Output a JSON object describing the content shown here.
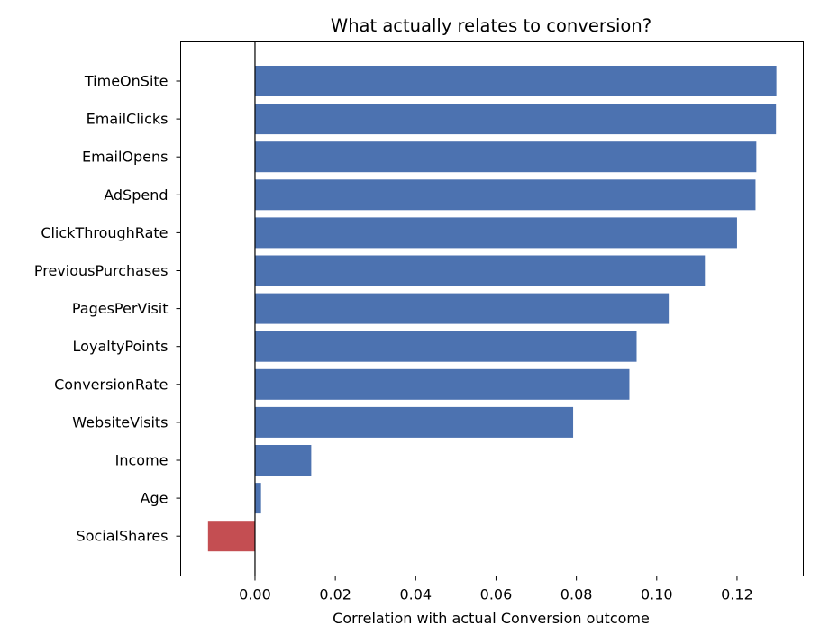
{
  "chart_data": {
    "type": "bar",
    "orientation": "horizontal",
    "title": "What actually relates to conversion?",
    "xlabel": "Correlation with actual Conversion outcome",
    "ylabel": "",
    "xlim": [
      -0.0185,
      0.1365
    ],
    "xticks": [
      "0.00",
      "0.02",
      "0.04",
      "0.06",
      "0.08",
      "0.10",
      "0.12"
    ],
    "grid": false,
    "legend": "none",
    "categories": [
      "TimeOnSite",
      "EmailClicks",
      "EmailOpens",
      "AdSpend",
      "ClickThroughRate",
      "PreviousPurchases",
      "PagesPerVisit",
      "LoyaltyPoints",
      "ConversionRate",
      "WebsiteVisits",
      "Income",
      "Age",
      "SocialShares"
    ],
    "values": [
      0.1298,
      0.1297,
      0.1248,
      0.1246,
      0.12,
      0.112,
      0.103,
      0.095,
      0.0932,
      0.0792,
      0.014,
      0.0015,
      -0.0117
    ],
    "colors": {
      "positive": "#4c72b0",
      "negative": "#c44e52",
      "zero_line": "#000000"
    }
  }
}
